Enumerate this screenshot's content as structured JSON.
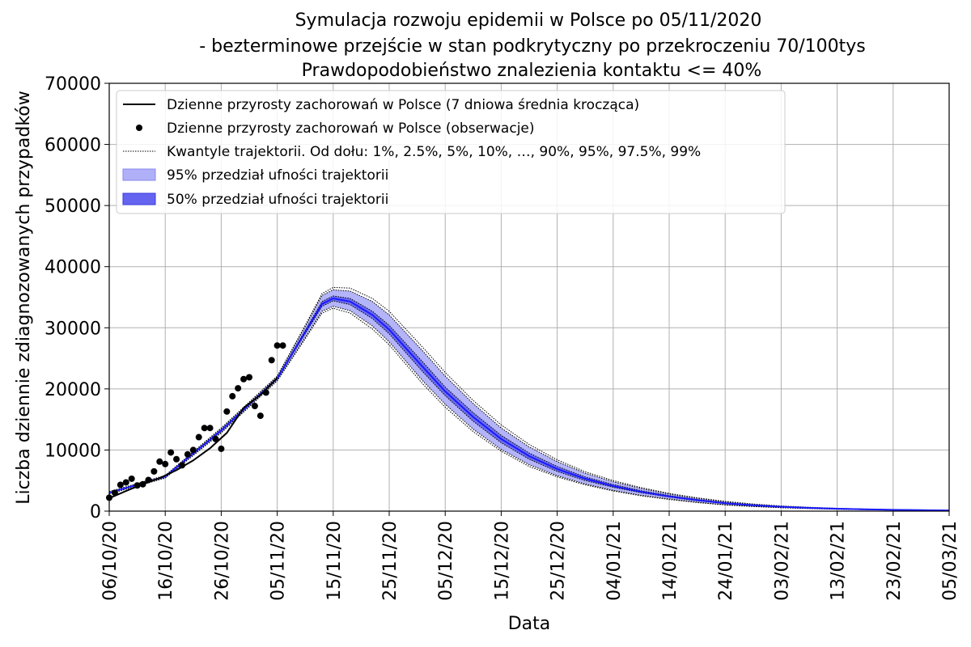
{
  "chart_data": {
    "type": "line",
    "title": [
      "Symulacja rozwoju epidemii w Polsce po 05/11/2020",
      "- bezterminowe przejście w stan podkrytyczny po przekroczeniu 70/100tys",
      "Prawdopodobieństwo znalezienia kontaktu <= 40%"
    ],
    "xlabel": "Data",
    "ylabel": "Liczba dziennie zdiagnozowanych przypadków",
    "x_ticks": [
      "06/10/20",
      "16/10/20",
      "26/10/20",
      "05/11/20",
      "15/11/20",
      "25/11/20",
      "05/12/20",
      "15/12/20",
      "25/12/20",
      "04/01/21",
      "14/01/21",
      "24/01/21",
      "03/02/21",
      "13/02/21",
      "23/02/21",
      "05/03/21"
    ],
    "x_range": [
      "2020-10-06",
      "2021-03-05"
    ],
    "ylim": [
      0,
      70000
    ],
    "y_ticks": [
      0,
      10000,
      20000,
      30000,
      40000,
      50000,
      60000,
      70000
    ],
    "grid": true,
    "legend_position": "top-left",
    "legend": [
      "Dzienne przyrosty zachorowań w Polsce (7 dniowa średnia krocząca)",
      "Dzienne przyrosty zachorowań w Polsce (obserwacje)",
      "Kwantyle trajektorii. Od dołu: 1%, 2.5%, 5%, 10%, …, 90%, 95%, 97.5%, 99%",
      "95% przedział ufności trajektorii",
      "50% przedział ufności trajektorii"
    ],
    "colors": {
      "moving_average": "#000000",
      "observations": "#000000",
      "quantiles": "#000000",
      "ci95": "#b0b0f8",
      "ci50": "#6464f0",
      "median": "#1a1aff"
    },
    "moving_average": {
      "x": [
        "2020-10-06",
        "2020-10-09",
        "2020-10-12",
        "2020-10-15",
        "2020-10-18",
        "2020-10-21",
        "2020-10-24",
        "2020-10-27",
        "2020-10-30",
        "2020-11-02",
        "2020-11-05"
      ],
      "y": [
        2100,
        3300,
        4400,
        5400,
        6700,
        8300,
        10300,
        12800,
        16900,
        19000,
        21800
      ]
    },
    "observations": {
      "x": [
        "2020-10-06",
        "2020-10-07",
        "2020-10-08",
        "2020-10-09",
        "2020-10-10",
        "2020-10-11",
        "2020-10-12",
        "2020-10-13",
        "2020-10-14",
        "2020-10-15",
        "2020-10-16",
        "2020-10-17",
        "2020-10-18",
        "2020-10-19",
        "2020-10-20",
        "2020-10-21",
        "2020-10-22",
        "2020-10-23",
        "2020-10-24",
        "2020-10-25",
        "2020-10-26",
        "2020-10-27",
        "2020-10-28",
        "2020-10-29",
        "2020-10-30",
        "2020-10-31",
        "2020-11-01",
        "2020-11-02",
        "2020-11-03",
        "2020-11-04",
        "2020-11-05"
      ],
      "y": [
        2200,
        3000,
        4300,
        4700,
        5300,
        4200,
        4400,
        5100,
        6500,
        8100,
        7700,
        9600,
        8500,
        7500,
        9300,
        10000,
        12100,
        13600,
        13600,
        11800,
        10200,
        16300,
        18800,
        20100,
        21600,
        21900,
        17200,
        15600,
        19400,
        24700,
        27100
      ]
    },
    "extra_observation": {
      "x": "2020-11-06",
      "y": 27100
    },
    "trajectory": {
      "x": [
        "2020-10-06",
        "2020-10-16",
        "2020-10-26",
        "2020-11-05",
        "2020-11-10",
        "2020-11-13",
        "2020-11-15",
        "2020-11-18",
        "2020-11-22",
        "2020-11-25",
        "2020-12-01",
        "2020-12-05",
        "2020-12-10",
        "2020-12-15",
        "2020-12-20",
        "2020-12-25",
        "2020-12-30",
        "2021-01-04",
        "2021-01-09",
        "2021-01-14",
        "2021-01-19",
        "2021-01-24",
        "2021-01-29",
        "2021-02-03",
        "2021-02-08",
        "2021-02-13",
        "2021-02-18",
        "2021-02-23",
        "2021-02-28",
        "2021-03-05"
      ],
      "q01": [
        2800,
        5400,
        12800,
        21300,
        28200,
        32400,
        33200,
        32400,
        29800,
        27200,
        20800,
        17000,
        13000,
        9800,
        7300,
        5600,
        4300,
        3300,
        2500,
        1900,
        1400,
        1000,
        750,
        560,
        420,
        310,
        230,
        170,
        120,
        90
      ],
      "q025": [
        2850,
        5450,
        12900,
        21400,
        28400,
        32700,
        33500,
        32800,
        30300,
        27700,
        21300,
        17500,
        13400,
        10100,
        7600,
        5800,
        4450,
        3400,
        2600,
        2000,
        1450,
        1050,
        780,
        580,
        440,
        320,
        240,
        175,
        125,
        95
      ],
      "q25": [
        2950,
        5600,
        13100,
        21600,
        29000,
        33500,
        34400,
        33800,
        31500,
        29000,
        22800,
        18900,
        14700,
        11200,
        8500,
        6500,
        5000,
        3900,
        3000,
        2300,
        1700,
        1250,
        920,
        680,
        510,
        380,
        280,
        205,
        150,
        110
      ],
      "q50": [
        3000,
        5650,
        13200,
        21700,
        29300,
        33900,
        34800,
        34300,
        32100,
        29700,
        23600,
        19600,
        15400,
        11800,
        9000,
        6900,
        5300,
        4100,
        3150,
        2400,
        1800,
        1300,
        960,
        710,
        530,
        395,
        290,
        215,
        160,
        115
      ],
      "q75": [
        3050,
        5700,
        13300,
        21800,
        29600,
        34300,
        35200,
        34800,
        32700,
        30400,
        24400,
        20300,
        16100,
        12400,
        9500,
        7300,
        5600,
        4350,
        3350,
        2550,
        1920,
        1400,
        1020,
        750,
        560,
        415,
        305,
        225,
        165,
        120
      ],
      "q975": [
        3150,
        5800,
        13500,
        22000,
        30200,
        35300,
        36200,
        36000,
        34300,
        32100,
        26200,
        22100,
        17600,
        13600,
        10500,
        8100,
        6200,
        4800,
        3700,
        2800,
        2100,
        1550,
        1120,
        820,
        610,
        450,
        330,
        245,
        180,
        130
      ],
      "q99": [
        3200,
        5850,
        13600,
        22100,
        30400,
        35600,
        36600,
        36500,
        34800,
        32700,
        26800,
        22700,
        18100,
        14100,
        10900,
        8400,
        6450,
        5000,
        3850,
        2900,
        2180,
        1600,
        1160,
        850,
        630,
        465,
        340,
        250,
        185,
        135
      ]
    }
  }
}
